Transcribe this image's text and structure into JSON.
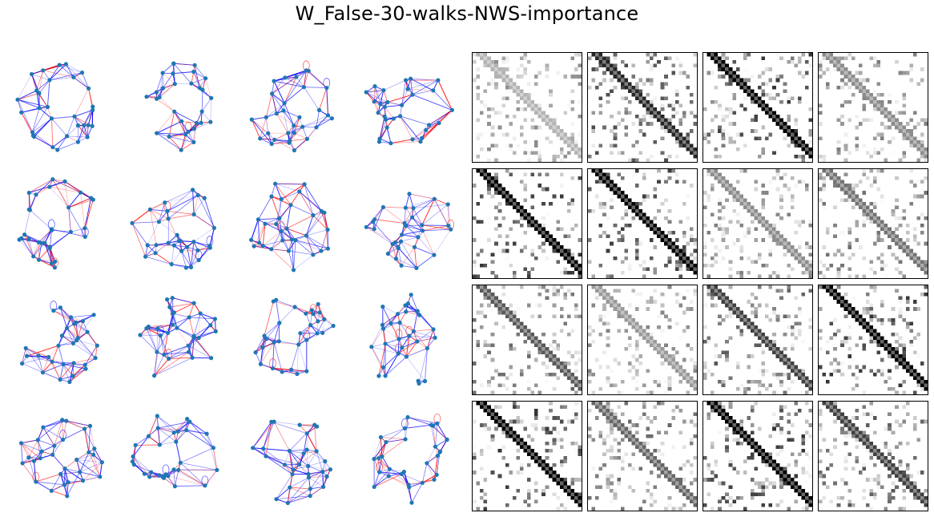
{
  "figure": {
    "title": "W_False-30-walks-NWS-importance"
  },
  "grid": {
    "rows": 4,
    "graph_columns": 4,
    "matrix_columns": 4,
    "nodes_per_graph": 30,
    "matrix_size": 30
  },
  "colors": {
    "node": "#1f77b4",
    "positive_edge": "#0000ff",
    "negative_edge": "#ff0000",
    "matrix_min": "#ffffff",
    "matrix_max": "#000000"
  },
  "matrix_band_darkness": [
    [
      0.3,
      0.85,
      1.0,
      0.45
    ],
    [
      1.0,
      1.0,
      0.45,
      0.55
    ],
    [
      0.65,
      0.4,
      0.75,
      1.0
    ],
    [
      1.0,
      0.6,
      1.0,
      0.75
    ]
  ]
}
